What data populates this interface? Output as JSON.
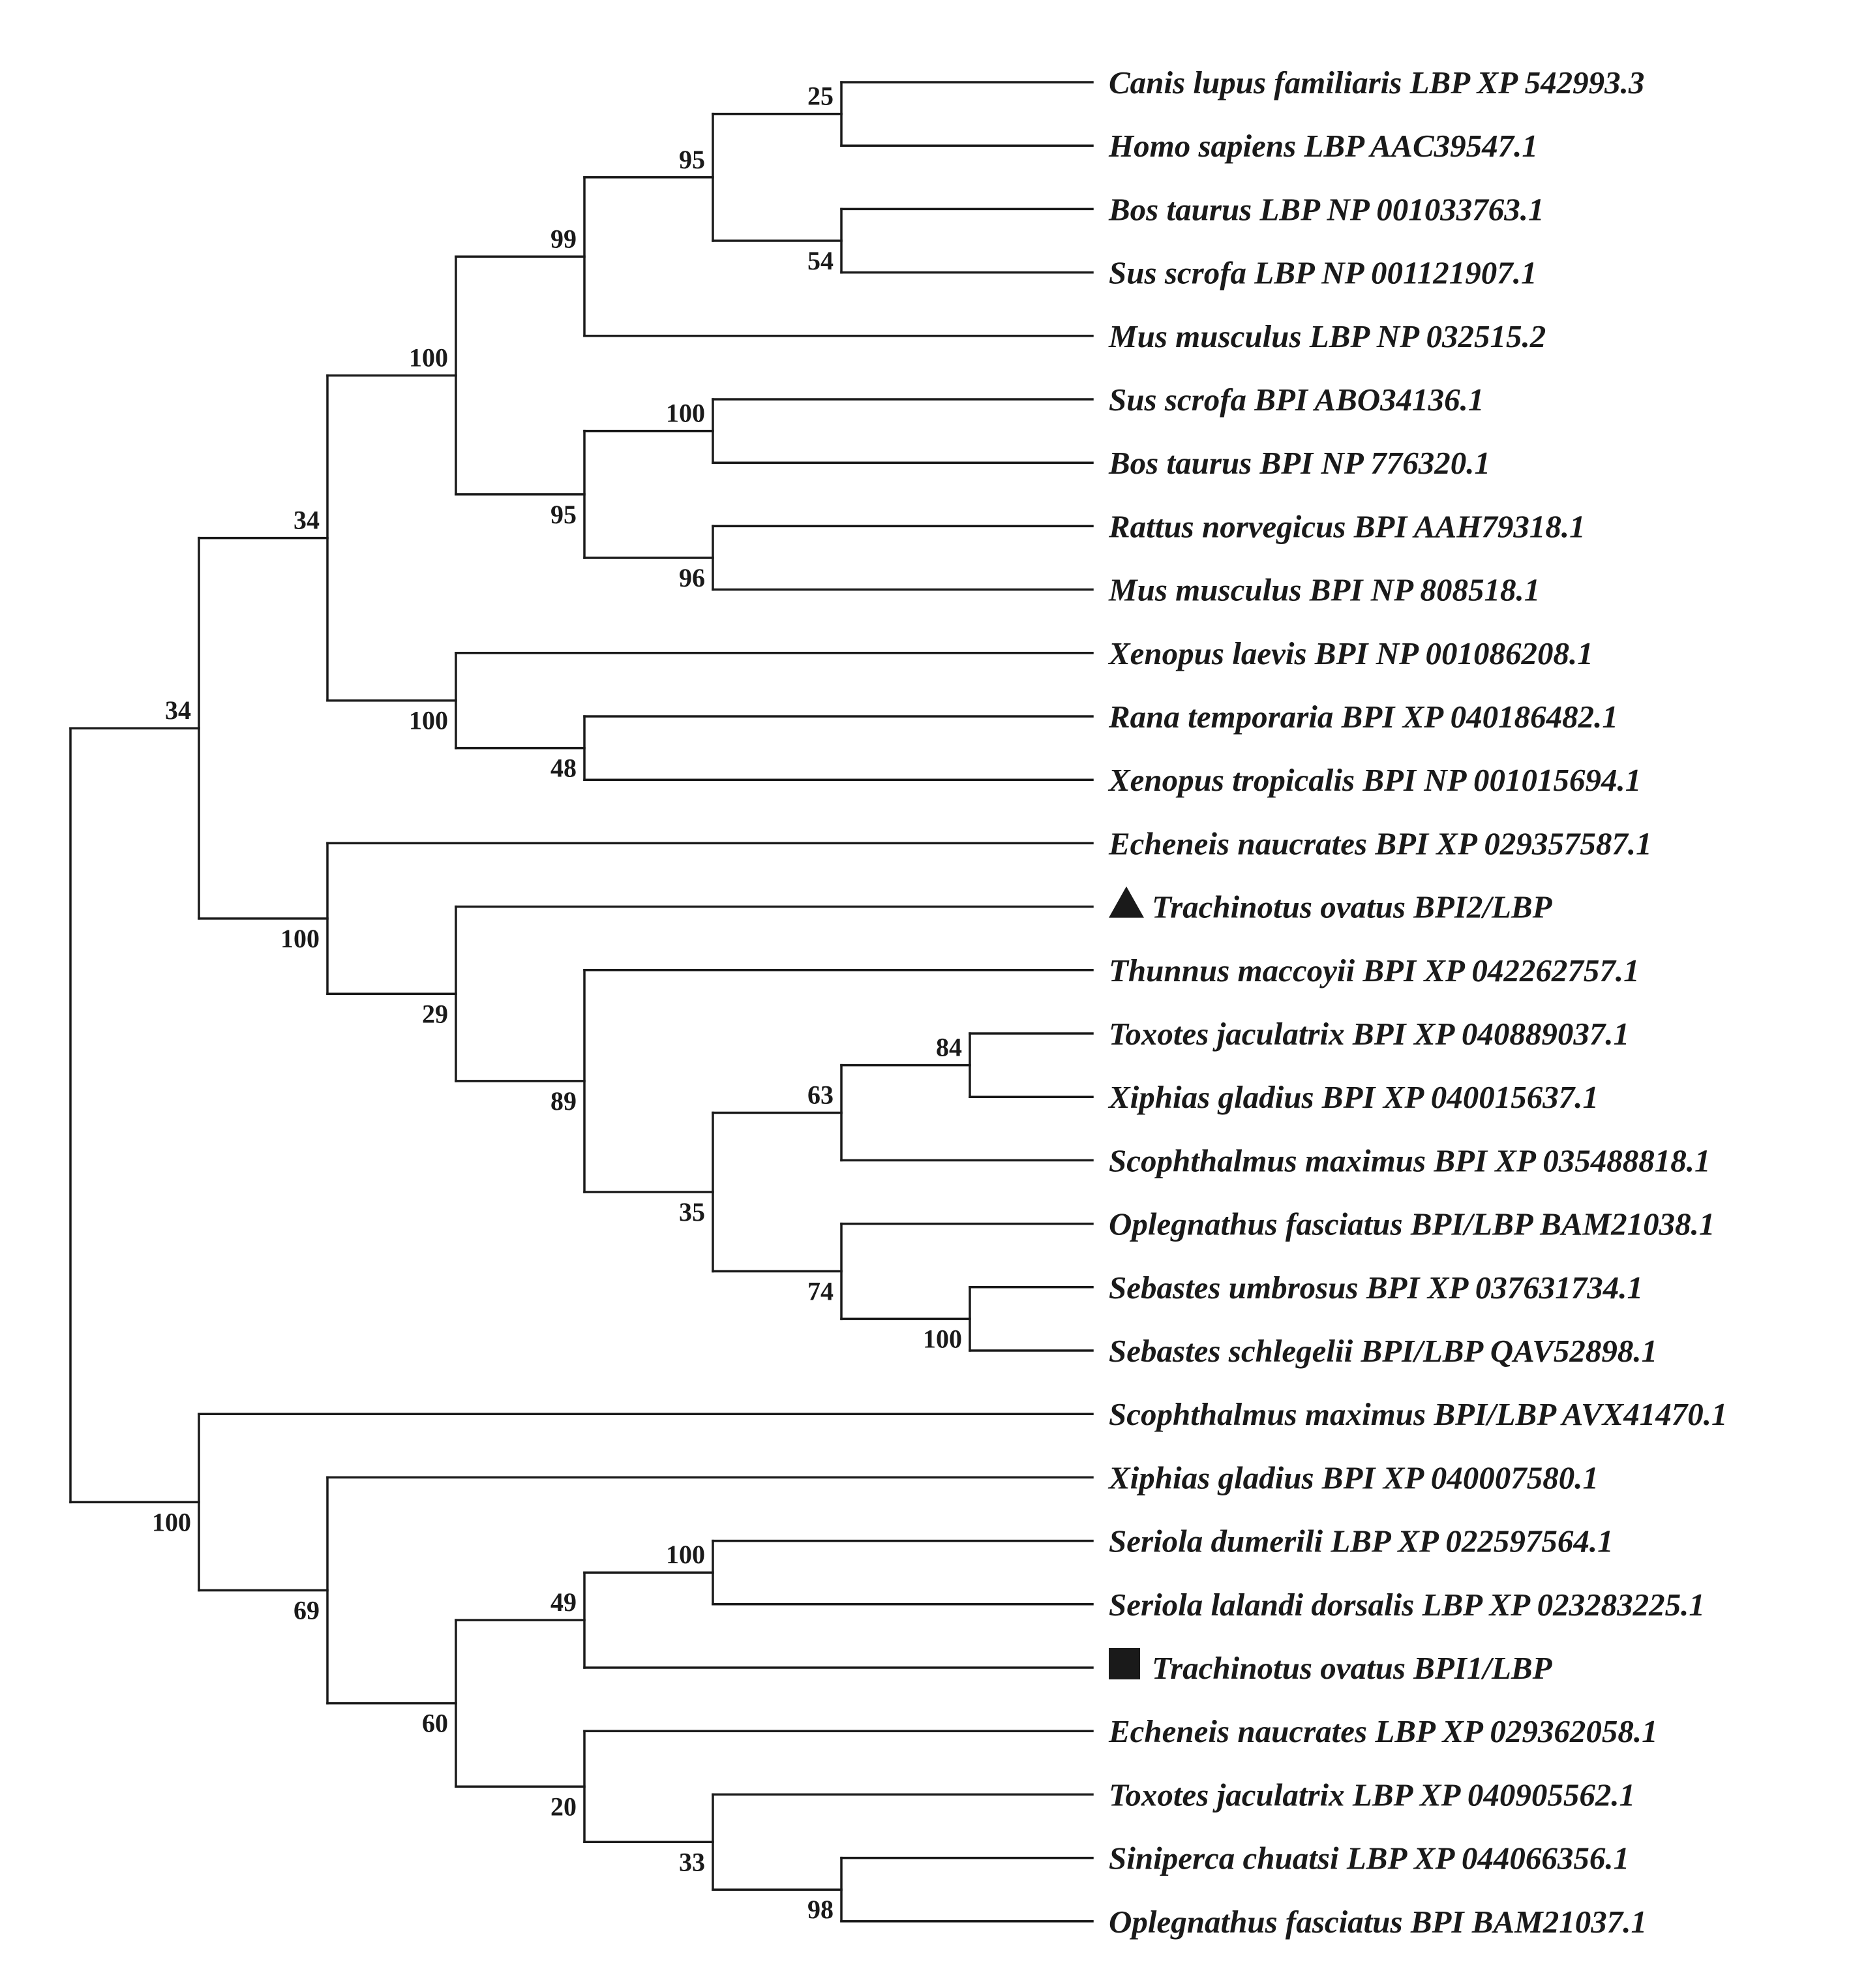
{
  "figure": "Phylogenetic tree of BPI/LBP proteins",
  "colors": {
    "ink": "#1a1a1a",
    "background": "#ffffff"
  },
  "taxa": [
    {
      "label": "Canis lupus familiaris LBP XP 542993.3"
    },
    {
      "label": "Homo sapiens LBP AAC39547.1"
    },
    {
      "label": "Bos taurus LBP NP 001033763.1"
    },
    {
      "label": "Sus scrofa LBP NP 001121907.1"
    },
    {
      "label": "Mus musculus LBP NP 032515.2"
    },
    {
      "label": "Sus scrofa BPI ABO34136.1"
    },
    {
      "label": "Bos taurus BPI NP 776320.1"
    },
    {
      "label": "Rattus norvegicus BPI AAH79318.1"
    },
    {
      "label": "Mus musculus BPI NP 808518.1"
    },
    {
      "label": "Xenopus laevis BPI NP 001086208.1"
    },
    {
      "label": "Rana temporaria BPI XP 040186482.1"
    },
    {
      "label": "Xenopus tropicalis BPI NP 001015694.1"
    },
    {
      "label": "Echeneis naucrates BPI XP 029357587.1"
    },
    {
      "label": "Trachinotus ovatus BPI2/LBP",
      "marker": "triangle"
    },
    {
      "label": "Thunnus maccoyii BPI XP 042262757.1"
    },
    {
      "label": "Toxotes jaculatrix BPI XP 040889037.1"
    },
    {
      "label": "Xiphias gladius BPI XP 040015637.1"
    },
    {
      "label": "Scophthalmus maximus BPI XP 035488818.1"
    },
    {
      "label": "Oplegnathus fasciatus BPI/LBP BAM21038.1"
    },
    {
      "label": "Sebastes umbrosus BPI XP 037631734.1"
    },
    {
      "label": "Sebastes schlegelii BPI/LBP QAV52898.1"
    },
    {
      "label": "Scophthalmus maximus BPI/LBP AVX41470.1"
    },
    {
      "label": "Xiphias gladius BPI XP 040007580.1"
    },
    {
      "label": "Seriola dumerili LBP XP 022597564.1"
    },
    {
      "label": "Seriola lalandi dorsalis LBP XP 023283225.1"
    },
    {
      "label": "Trachinotus ovatus BPI1/LBP",
      "marker": "square"
    },
    {
      "label": "Echeneis naucrates LBP XP 029362058.1"
    },
    {
      "label": "Toxotes jaculatrix LBP XP 040905562.1"
    },
    {
      "label": "Siniperca chuatsi LBP XP 044066356.1"
    },
    {
      "label": "Oplegnathus fasciatus BPI BAM21037.1"
    }
  ],
  "tree": {
    "children": [
      {
        "support": "34",
        "children": [
          {
            "support": "34",
            "children": [
              {
                "support": "100",
                "children": [
                  {
                    "support": "99",
                    "children": [
                      {
                        "support": "95",
                        "children": [
                          {
                            "support": "25",
                            "children": [
                              {
                                "leaf": 0
                              },
                              {
                                "leaf": 1
                              }
                            ]
                          },
                          {
                            "support": "54",
                            "children": [
                              {
                                "leaf": 2
                              },
                              {
                                "leaf": 3
                              }
                            ]
                          }
                        ]
                      },
                      {
                        "leaf": 4
                      }
                    ]
                  },
                  {
                    "support": "95",
                    "children": [
                      {
                        "support": "100",
                        "children": [
                          {
                            "leaf": 5
                          },
                          {
                            "leaf": 6
                          }
                        ]
                      },
                      {
                        "support": "96",
                        "children": [
                          {
                            "leaf": 7
                          },
                          {
                            "leaf": 8
                          }
                        ]
                      }
                    ]
                  }
                ]
              },
              {
                "support": "100",
                "children": [
                  {
                    "leaf": 9
                  },
                  {
                    "support": "48",
                    "children": [
                      {
                        "leaf": 10
                      },
                      {
                        "leaf": 11
                      }
                    ]
                  }
                ]
              }
            ]
          },
          {
            "support": "100",
            "children": [
              {
                "leaf": 12
              },
              {
                "support": "29",
                "children": [
                  {
                    "leaf": 13
                  },
                  {
                    "support": "89",
                    "children": [
                      {
                        "leaf": 14
                      },
                      {
                        "support": "35",
                        "children": [
                          {
                            "support": "63",
                            "children": [
                              {
                                "support": "84",
                                "children": [
                                  {
                                    "leaf": 15
                                  },
                                  {
                                    "leaf": 16
                                  }
                                ]
                              },
                              {
                                "leaf": 17
                              }
                            ]
                          },
                          {
                            "support": "74",
                            "children": [
                              {
                                "leaf": 18
                              },
                              {
                                "support": "100",
                                "children": [
                                  {
                                    "leaf": 19
                                  },
                                  {
                                    "leaf": 20
                                  }
                                ]
                              }
                            ]
                          }
                        ]
                      }
                    ]
                  }
                ]
              }
            ]
          }
        ]
      },
      {
        "support": "100",
        "children": [
          {
            "leaf": 21
          },
          {
            "support": "69",
            "children": [
              {
                "leaf": 22
              },
              {
                "support": "60",
                "children": [
                  {
                    "support": "49",
                    "children": [
                      {
                        "support": "100",
                        "children": [
                          {
                            "leaf": 23
                          },
                          {
                            "leaf": 24
                          }
                        ]
                      },
                      {
                        "leaf": 25
                      }
                    ]
                  },
                  {
                    "support": "20",
                    "children": [
                      {
                        "leaf": 26
                      },
                      {
                        "support": "33",
                        "children": [
                          {
                            "leaf": 27
                          },
                          {
                            "support": "98",
                            "children": [
                              {
                                "leaf": 28
                              },
                              {
                                "leaf": 29
                              }
                            ]
                          }
                        ]
                      }
                    ]
                  }
                ]
              }
            ]
          }
        ]
      }
    ]
  }
}
